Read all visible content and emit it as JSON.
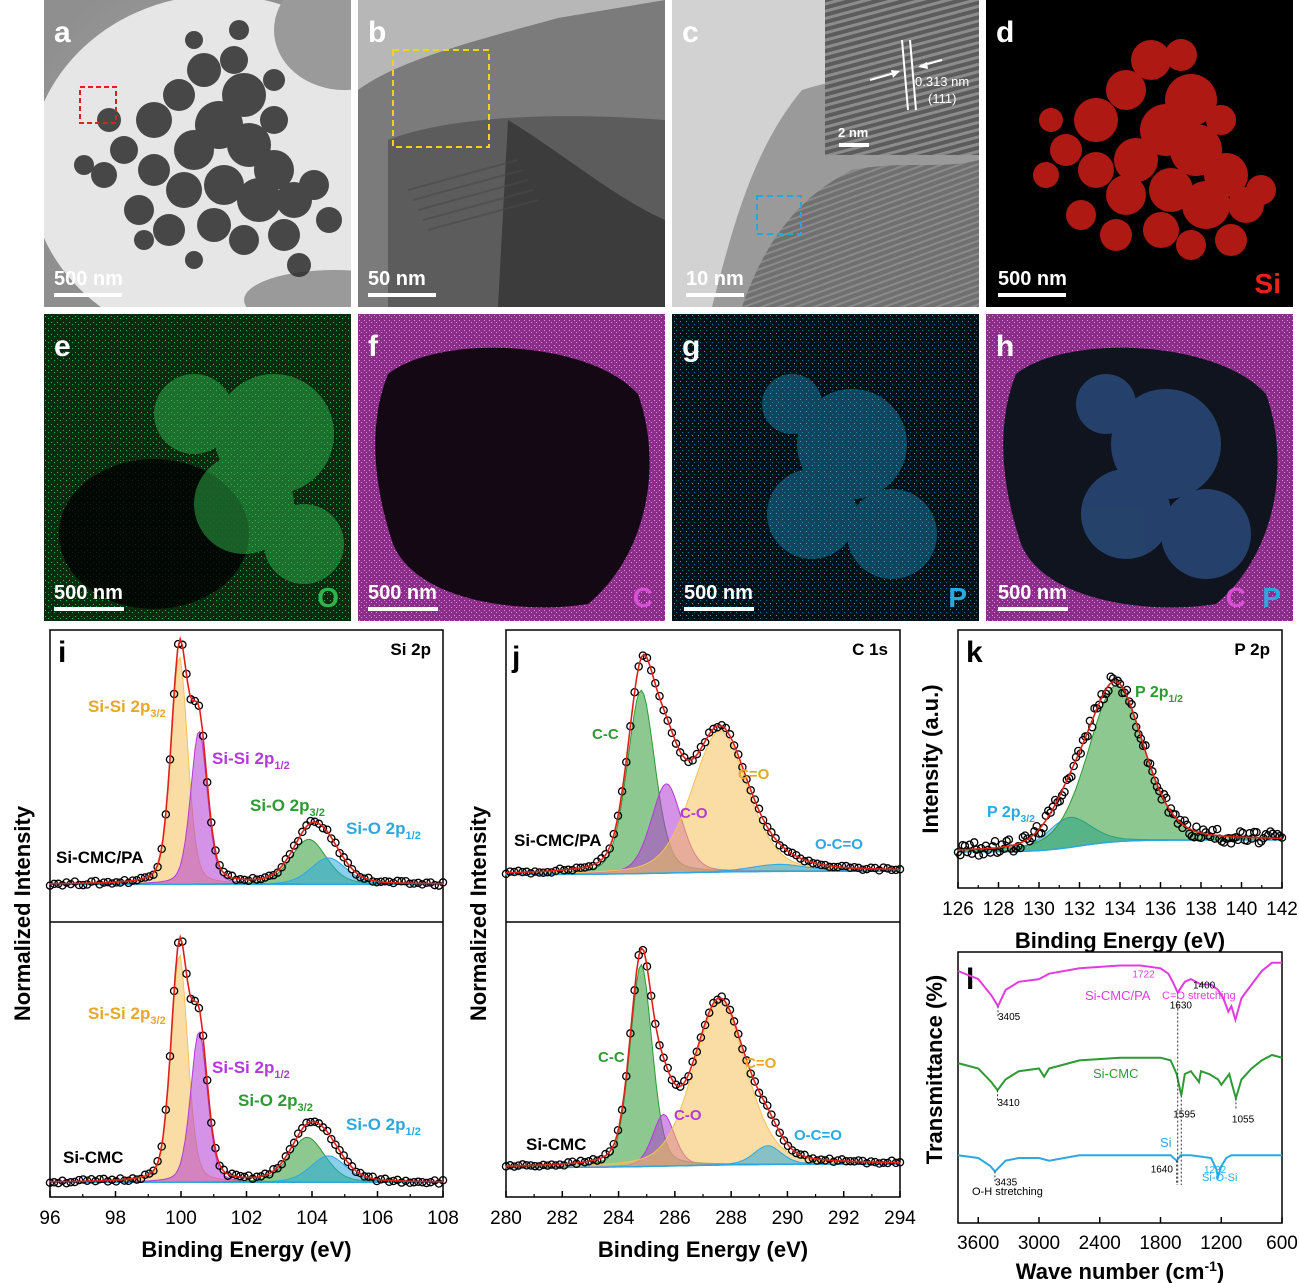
{
  "panels": {
    "a": {
      "letter": "a",
      "scale": "500 nm"
    },
    "b": {
      "letter": "b",
      "scale": "50 nm"
    },
    "c": {
      "letter": "c",
      "scale": "10 nm",
      "inset_d": "0.313 nm",
      "inset_plane": "(111)",
      "inset_scale": "2 nm"
    },
    "d": {
      "letter": "d",
      "scale": "500 nm",
      "element": "Si",
      "color": "#e8231a"
    },
    "e": {
      "letter": "e",
      "scale": "500 nm",
      "element": "O",
      "color": "#2fb34a"
    },
    "f": {
      "letter": "f",
      "scale": "500 nm",
      "element": "C",
      "color": "#d94fd6"
    },
    "g": {
      "letter": "g",
      "scale": "500 nm",
      "element": "P",
      "color": "#2aa9e0"
    },
    "h": {
      "letter": "h",
      "scale": "500 nm",
      "element": "C",
      "element2": "P"
    }
  },
  "chart_data": [
    {
      "panel": "i",
      "type": "line",
      "title": "Si 2p",
      "xlabel": "Binding Energy (eV)",
      "ylabel": "Normalized Intensity",
      "xlim": [
        96,
        108
      ],
      "xticks": [
        96,
        98,
        100,
        102,
        104,
        106,
        108
      ],
      "samples": [
        {
          "name": "Si-CMC/PA",
          "components": [
            {
              "name": "Si-Si 2p3/2",
              "label_main": "Si-Si 2p",
              "label_sub": "3/2",
              "center": 99.95,
              "width": 0.26,
              "height": 0.86,
              "color": "#f5c15a"
            },
            {
              "name": "Si-Si 2p1/2",
              "label_main": "Si-Si 2p",
              "label_sub": "1/2",
              "center": 100.55,
              "width": 0.26,
              "height": 0.58,
              "color": "#b23ad6"
            },
            {
              "name": "Si-O 2p3/2",
              "label_main": "Si-O 2p",
              "label_sub": "3/2",
              "center": 103.9,
              "width": 0.55,
              "height": 0.17,
              "color": "#2e9a34"
            },
            {
              "name": "Si-O 2p1/2",
              "label_main": "Si-O 2p",
              "label_sub": "1/2",
              "center": 104.5,
              "width": 0.55,
              "height": 0.1,
              "color": "#2aa9e0"
            }
          ]
        },
        {
          "name": "Si-CMC",
          "components": [
            {
              "name": "Si-Si 2p3/2",
              "label_main": "Si-Si 2p",
              "label_sub": "3/2",
              "center": 99.95,
              "width": 0.26,
              "height": 0.86,
              "color": "#f5c15a"
            },
            {
              "name": "Si-Si 2p1/2",
              "label_main": "Si-Si 2p",
              "label_sub": "1/2",
              "center": 100.55,
              "width": 0.26,
              "height": 0.57,
              "color": "#b23ad6"
            },
            {
              "name": "Si-O 2p3/2",
              "label_main": "Si-O 2p",
              "label_sub": "3/2",
              "center": 103.85,
              "width": 0.55,
              "height": 0.17,
              "color": "#2e9a34"
            },
            {
              "name": "Si-O 2p1/2",
              "label_main": "Si-O 2p",
              "label_sub": "1/2",
              "center": 104.5,
              "width": 0.55,
              "height": 0.1,
              "color": "#2aa9e0"
            }
          ]
        }
      ]
    },
    {
      "panel": "j",
      "type": "line",
      "title": "C 1s",
      "xlabel": "Binding Energy (eV)",
      "ylabel": "Normalized Intensity",
      "xlim": [
        280,
        294
      ],
      "xticks": [
        280,
        282,
        284,
        286,
        288,
        290,
        292,
        294
      ],
      "samples": [
        {
          "name": "Si-CMC/PA",
          "components": [
            {
              "name": "C-C",
              "center": 284.8,
              "width": 0.5,
              "height": 0.78,
              "color": "#2e9a34"
            },
            {
              "name": "C-O",
              "center": 285.7,
              "width": 0.55,
              "height": 0.38,
              "color": "#b23ad6"
            },
            {
              "name": "C=O",
              "center": 287.6,
              "width": 1.0,
              "height": 0.6,
              "color": "#f5c15a"
            },
            {
              "name": "O-C=O",
              "center": 289.7,
              "width": 1.0,
              "height": 0.03,
              "color": "#2aa9e0"
            }
          ]
        },
        {
          "name": "Si-CMC",
          "components": [
            {
              "name": "C-C",
              "center": 284.8,
              "width": 0.4,
              "height": 0.86,
              "color": "#2e9a34"
            },
            {
              "name": "C-O",
              "center": 285.6,
              "width": 0.4,
              "height": 0.22,
              "color": "#b23ad6"
            },
            {
              "name": "C=O",
              "center": 287.6,
              "width": 0.95,
              "height": 0.7,
              "color": "#f5c15a"
            },
            {
              "name": "O-C=O",
              "center": 289.3,
              "width": 0.5,
              "height": 0.08,
              "color": "#2aa9e0"
            }
          ]
        }
      ]
    },
    {
      "panel": "k",
      "type": "line",
      "title": "P 2p",
      "xlabel": "Binding Energy (eV)",
      "ylabel": "Intensity (a.u.)",
      "xlim": [
        126,
        142
      ],
      "xticks": [
        126,
        128,
        130,
        132,
        134,
        136,
        138,
        140,
        142
      ],
      "components": [
        {
          "name": "P 2p3/2",
          "label_main": "P 2p",
          "label_sub": "3/2",
          "center": 131.5,
          "width": 1.1,
          "height": 0.15,
          "color": "#2aa9e0"
        },
        {
          "name": "P 2p1/2",
          "label_main": "P 2p",
          "label_sub": "1/2",
          "center": 133.8,
          "width": 1.4,
          "height": 0.78,
          "color": "#2e9a34"
        }
      ]
    },
    {
      "panel": "l",
      "type": "line",
      "xlabel": "Wave number (cm",
      "xlabel_sup": "-1",
      "xlabel_end": ")",
      "ylabel": "Transmittance (%)",
      "xlim": [
        3800,
        600
      ],
      "xticks": [
        3600,
        3000,
        2400,
        1800,
        1200,
        600
      ],
      "series": [
        {
          "name": "Si-CMC/PA",
          "color": "#e23ce0",
          "x": [
            3800,
            3600,
            3470,
            3405,
            3330,
            3200,
            3000,
            2900,
            2600,
            2200,
            2000,
            1800,
            1722,
            1680,
            1630,
            1560,
            1500,
            1400,
            1300,
            1232,
            1180,
            1130,
            1100,
            1060,
            1000,
            900,
            800,
            700,
            600
          ],
          "y": [
            0.93,
            0.9,
            0.84,
            0.8,
            0.86,
            0.89,
            0.9,
            0.92,
            0.94,
            0.95,
            0.95,
            0.94,
            0.92,
            0.89,
            0.85,
            0.89,
            0.9,
            0.88,
            0.88,
            0.86,
            0.83,
            0.78,
            0.8,
            0.75,
            0.83,
            0.88,
            0.93,
            0.96,
            0.96
          ]
        },
        {
          "name": "Si-CMC",
          "color": "#2e9a34",
          "x": [
            3800,
            3600,
            3470,
            3410,
            3330,
            3200,
            3000,
            2950,
            2900,
            2600,
            2200,
            2000,
            1800,
            1700,
            1640,
            1595,
            1560,
            1500,
            1420,
            1400,
            1320,
            1232,
            1200,
            1120,
            1100,
            1055,
            1000,
            900,
            800,
            700,
            600
          ],
          "y": [
            0.59,
            0.57,
            0.52,
            0.49,
            0.53,
            0.56,
            0.57,
            0.54,
            0.57,
            0.6,
            0.61,
            0.61,
            0.61,
            0.6,
            0.55,
            0.47,
            0.55,
            0.56,
            0.52,
            0.56,
            0.55,
            0.53,
            0.51,
            0.55,
            0.52,
            0.46,
            0.53,
            0.57,
            0.6,
            0.62,
            0.61
          ]
        },
        {
          "name": "Si",
          "color": "#2aa9e0",
          "x": [
            3800,
            3600,
            3480,
            3435,
            3330,
            3200,
            3000,
            2900,
            2600,
            2200,
            1800,
            1700,
            1640,
            1600,
            1500,
            1300,
            1250,
            1232,
            1200,
            1150,
            1100,
            1000,
            800,
            600
          ],
          "y": [
            0.25,
            0.24,
            0.21,
            0.19,
            0.23,
            0.24,
            0.24,
            0.23,
            0.25,
            0.25,
            0.25,
            0.25,
            0.23,
            0.25,
            0.25,
            0.24,
            0.2,
            0.17,
            0.21,
            0.24,
            0.25,
            0.25,
            0.25,
            0.25
          ]
        }
      ],
      "peaks": [
        {
          "label": "3405",
          "x": 3405,
          "series": "Si-CMC/PA"
        },
        {
          "label": "1722",
          "x": 1722,
          "series": "Si-CMC/PA",
          "color": "#e23ce0"
        },
        {
          "label": "1630",
          "x": 1630,
          "series": "Si-CMC/PA"
        },
        {
          "label": "1400",
          "x": 1400,
          "series": "Si-CMC/PA"
        },
        {
          "label": "3410",
          "x": 3410,
          "series": "Si-CMC"
        },
        {
          "label": "1595",
          "x": 1595,
          "series": "Si-CMC"
        },
        {
          "label": "1055",
          "x": 1055,
          "series": "Si-CMC"
        },
        {
          "label": "3435",
          "x": 3435,
          "series": "Si"
        },
        {
          "label": "1640",
          "x": 1640,
          "series": "Si"
        },
        {
          "label": "1232",
          "x": 1232,
          "series": "Si",
          "color": "#2aa9e0"
        }
      ],
      "annotations": {
        "co_stretch": "C=O stretching",
        "oh_stretch": "O-H stretching",
        "siosi": "Si-O-Si"
      }
    }
  ]
}
